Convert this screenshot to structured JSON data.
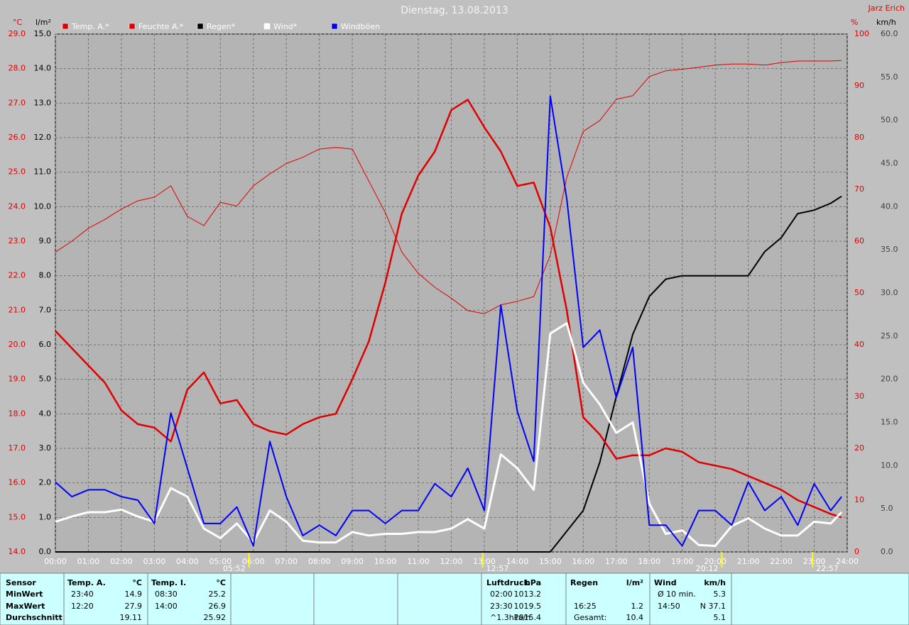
{
  "chart_data": {
    "type": "line",
    "title": "Dienstag, 13.08.2013",
    "author": "Jarz Erich",
    "ylabel": "°C",
    "y3label": "l/m²",
    "y2label": "%",
    "y4label": "km/h",
    "xlim": [
      0,
      24
    ],
    "xticks": [
      {
        "value": 0,
        "label": "00:00"
      },
      {
        "value": 1,
        "label": "01:00"
      },
      {
        "value": 2,
        "label": "02:00"
      },
      {
        "value": 3,
        "label": "03:00"
      },
      {
        "value": 4,
        "label": "04:00"
      },
      {
        "value": 5,
        "label": "05:00"
      },
      {
        "value": 6,
        "label": "06:00"
      },
      {
        "value": 7,
        "label": "07:00"
      },
      {
        "value": 8,
        "label": "08:00"
      },
      {
        "value": 9,
        "label": "09:00"
      },
      {
        "value": 10,
        "label": "10:00"
      },
      {
        "value": 11,
        "label": "11:00"
      },
      {
        "value": 12,
        "label": "12:00"
      },
      {
        "value": 13,
        "label": "13:00"
      },
      {
        "value": 14,
        "label": "14:00"
      },
      {
        "value": 15,
        "label": "15:00"
      },
      {
        "value": 16,
        "label": "16:00"
      },
      {
        "value": 17,
        "label": "17:00"
      },
      {
        "value": 18,
        "label": "18:00"
      },
      {
        "value": 19,
        "label": "19:00"
      },
      {
        "value": 20,
        "label": "20:00"
      },
      {
        "value": 21,
        "label": "21:00"
      },
      {
        "value": 22,
        "label": "22:00"
      },
      {
        "value": 23,
        "label": "23:00"
      },
      {
        "value": 24,
        "label": "24:00"
      }
    ],
    "ylim": [
      14,
      29
    ],
    "yticks": [
      {
        "value": 14,
        "label": "14.0"
      },
      {
        "value": 15,
        "label": "15.0"
      },
      {
        "value": 16,
        "label": "16.0"
      },
      {
        "value": 17,
        "label": "17.0"
      },
      {
        "value": 18,
        "label": "18.0"
      },
      {
        "value": 19,
        "label": "19.0"
      },
      {
        "value": 20,
        "label": "20.0"
      },
      {
        "value": 21,
        "label": "21.0"
      },
      {
        "value": 22,
        "label": "22.0"
      },
      {
        "value": 23,
        "label": "23.0"
      },
      {
        "value": 24,
        "label": "24.0"
      },
      {
        "value": 25,
        "label": "25.0"
      },
      {
        "value": 26,
        "label": "26.0"
      },
      {
        "value": 27,
        "label": "27.0"
      },
      {
        "value": 28,
        "label": "28.0"
      },
      {
        "value": 29,
        "label": "29.0"
      }
    ],
    "y3lim": [
      0,
      15
    ],
    "y3ticks": [
      {
        "value": 0,
        "label": "0.0"
      },
      {
        "value": 1,
        "label": "1.0"
      },
      {
        "value": 2,
        "label": "2.0"
      },
      {
        "value": 3,
        "label": "3.0"
      },
      {
        "value": 4,
        "label": "4.0"
      },
      {
        "value": 5,
        "label": "5.0"
      },
      {
        "value": 6,
        "label": "6.0"
      },
      {
        "value": 7,
        "label": "7.0"
      },
      {
        "value": 8,
        "label": "8.0"
      },
      {
        "value": 9,
        "label": "9.0"
      },
      {
        "value": 10,
        "label": "10.0"
      },
      {
        "value": 11,
        "label": "11.0"
      },
      {
        "value": 12,
        "label": "12.0"
      },
      {
        "value": 13,
        "label": "13.0"
      },
      {
        "value": 14,
        "label": "14.0"
      },
      {
        "value": 15,
        "label": "15.0"
      }
    ],
    "y2lim": [
      0,
      100
    ],
    "y2ticks": [
      0,
      10,
      20,
      30,
      40,
      50,
      60,
      70,
      80,
      90,
      100
    ],
    "y4lim": [
      0,
      60
    ],
    "y4ticks": [
      {
        "value": 0,
        "label": "0.0"
      },
      {
        "value": 5,
        "label": "5.0"
      },
      {
        "value": 10,
        "label": "10.0"
      },
      {
        "value": 15,
        "label": "15.0"
      },
      {
        "value": 20,
        "label": "20.0"
      },
      {
        "value": 25,
        "label": "25.0"
      },
      {
        "value": 30,
        "label": "30.0"
      },
      {
        "value": 35,
        "label": "35.0"
      },
      {
        "value": 40,
        "label": "40.0"
      },
      {
        "value": 45,
        "label": "45.0"
      },
      {
        "value": 50,
        "label": "50.0"
      },
      {
        "value": 55,
        "label": "55.0"
      },
      {
        "value": 60,
        "label": "60.0"
      }
    ],
    "grid": true,
    "annotations": [
      {
        "value": 5.87,
        "label": "05:52"
      },
      {
        "value": 12.95,
        "label": "12:57"
      },
      {
        "value": 20.2,
        "label": "20:12"
      },
      {
        "value": 22.95,
        "label": "22:57"
      }
    ],
    "x": [
      0,
      0.5,
      1,
      1.5,
      2,
      2.5,
      3,
      3.5,
      4,
      4.5,
      5,
      5.5,
      6,
      6.5,
      7,
      7.5,
      8,
      8.5,
      9,
      9.5,
      10,
      10.5,
      11,
      11.5,
      12,
      12.5,
      13,
      13.5,
      14,
      14.5,
      15,
      15.5,
      16,
      16.5,
      17,
      17.5,
      18,
      18.5,
      19,
      19.5,
      20,
      20.5,
      21,
      21.5,
      22,
      22.5,
      23,
      23.5,
      23.83
    ],
    "series": [
      {
        "name": "Temp. A.*",
        "color": "#e00000",
        "axis": "y",
        "values": [
          20.4,
          19.9,
          19.4,
          18.9,
          18.1,
          17.7,
          17.6,
          17.2,
          18.7,
          19.2,
          18.3,
          18.4,
          17.7,
          17.5,
          17.4,
          17.7,
          17.9,
          18.0,
          19.0,
          20.1,
          21.8,
          23.8,
          24.9,
          25.6,
          26.8,
          27.1,
          26.3,
          25.6,
          24.6,
          24.7,
          23.4,
          21.0,
          17.9,
          17.4,
          16.7,
          16.8,
          16.8,
          17.0,
          16.9,
          16.6,
          16.5,
          16.4,
          16.2,
          16.0,
          15.8,
          15.5,
          15.3,
          15.1,
          15.0
        ]
      },
      {
        "name": "Feuchte A.*",
        "color": "#e00000",
        "axis": "y2",
        "values": [
          57.9,
          60,
          62.5,
          64.2,
          66.2,
          67.8,
          68.5,
          70.7,
          64.8,
          63,
          67.5,
          66.8,
          70.7,
          73,
          75,
          76.2,
          77.8,
          78.1,
          77.8,
          71.6,
          65.5,
          57.9,
          53.8,
          51.1,
          49,
          46.6,
          46,
          47.7,
          48.4,
          49.3,
          57.3,
          72.3,
          81.2,
          83.3,
          87.4,
          88.1,
          91.8,
          92.9,
          93.2,
          93.6,
          94,
          94.2,
          94.2,
          94,
          94.5,
          94.8,
          94.8,
          94.8,
          94.9
        ]
      },
      {
        "name": "Regen*",
        "color": "#000000",
        "axis": "y3",
        "values": [
          0,
          0,
          0,
          0,
          0,
          0,
          0,
          0,
          0,
          0,
          0,
          0,
          0,
          0,
          0,
          0,
          0,
          0,
          0,
          0,
          0,
          0,
          0,
          0,
          0,
          0,
          0,
          0,
          0,
          0,
          0,
          0.6,
          1.2,
          2.6,
          4.5,
          6.3,
          7.4,
          7.9,
          8.0,
          8.0,
          8.0,
          8.0,
          8.0,
          8.7,
          9.1,
          9.8,
          9.9,
          10.1,
          10.3
        ]
      },
      {
        "name": "Wind*",
        "color": "#ffffff",
        "axis": "y4",
        "values": [
          3.5,
          4.1,
          4.6,
          4.6,
          4.9,
          4.1,
          3.5,
          7.4,
          6.4,
          2.7,
          1.6,
          3.3,
          1.1,
          4.8,
          3.5,
          1.3,
          1.1,
          1.1,
          2.3,
          1.9,
          2.1,
          2.1,
          2.3,
          2.3,
          2.7,
          3.8,
          2.7,
          11.3,
          9.7,
          7.2,
          25.3,
          26.5,
          19.6,
          17.1,
          13.8,
          15.0,
          5.6,
          2.1,
          2.5,
          0.8,
          0.7,
          3.0,
          3.9,
          2.7,
          1.9,
          1.9,
          3.5,
          3.3,
          4.6
        ]
      },
      {
        "name": "Windböen",
        "color": "#0000ff",
        "axis": "y4",
        "values": [
          8.1,
          6.4,
          7.2,
          7.2,
          6.4,
          6.0,
          3.3,
          16.1,
          9.7,
          3.3,
          3.3,
          5.2,
          0.7,
          12.8,
          6.4,
          1.9,
          3.1,
          1.9,
          4.8,
          4.8,
          3.3,
          4.8,
          4.8,
          7.9,
          6.4,
          9.7,
          4.8,
          28.6,
          16.3,
          10.5,
          52.8,
          40.9,
          23.7,
          25.7,
          17.9,
          23.7,
          3.1,
          3.1,
          0.7,
          4.8,
          4.8,
          3.1,
          8.1,
          4.8,
          6.4,
          3.1,
          7.9,
          4.8,
          6.4
        ]
      }
    ]
  },
  "table": {
    "header": [
      "Sensor",
      "Temp. A.",
      "°C",
      "Temp. I.",
      "°C",
      "Luftdruck",
      "hPa",
      "Regen",
      "l/m²",
      "Wind",
      "km/h"
    ],
    "rows": [
      [
        "MinWert",
        "23:40",
        "14.9",
        "08:30",
        "25.2",
        "02:00",
        "1013.2",
        null,
        null,
        "Ø 10 min.",
        "5.3"
      ],
      [
        "MaxWert",
        "12:20",
        "27.9",
        "14:00",
        "26.9",
        "23:30",
        "1019.5",
        "16:25",
        "1.2",
        "14:50",
        "N 37.1"
      ],
      [
        "Durchschnitt",
        null,
        "19.11",
        null,
        "25.92",
        "^1.3hPa/h",
        "1015.4",
        "Gesamt:",
        "10.4",
        null,
        "5.1"
      ]
    ]
  }
}
